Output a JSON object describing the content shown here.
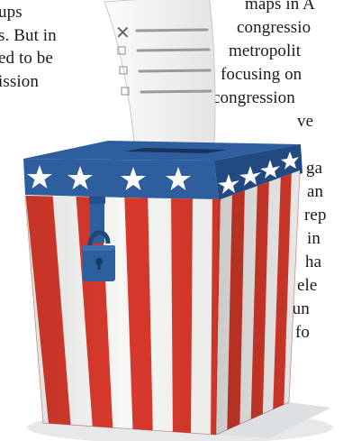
{
  "left_column": {
    "lines": [
      "ups",
      "s. But in",
      "ed to be",
      "ission"
    ]
  },
  "right_column": {
    "lines": [
      "maps in A",
      "congressio",
      "metropolit",
      "focusing on",
      "congression",
      "ve",
      "ga",
      "an",
      "rep",
      "in",
      "ha",
      "ele",
      "hun",
      "fo"
    ]
  },
  "illustration": {
    "subject": "ballot-box-with-ballot",
    "ballot_mark": "✕",
    "colors": {
      "stripe_red": "#d7392b",
      "stripe_white": "#f6f6f4",
      "lid_blue": "#2f5e9e",
      "lid_blue_dark": "#234a80",
      "lock_blue": "#2c5f9e",
      "star_white": "#ffffff",
      "paper": "#f0f0ee",
      "paper_lines": "#9a9a9a",
      "shadow": "#e6e8ea"
    }
  }
}
